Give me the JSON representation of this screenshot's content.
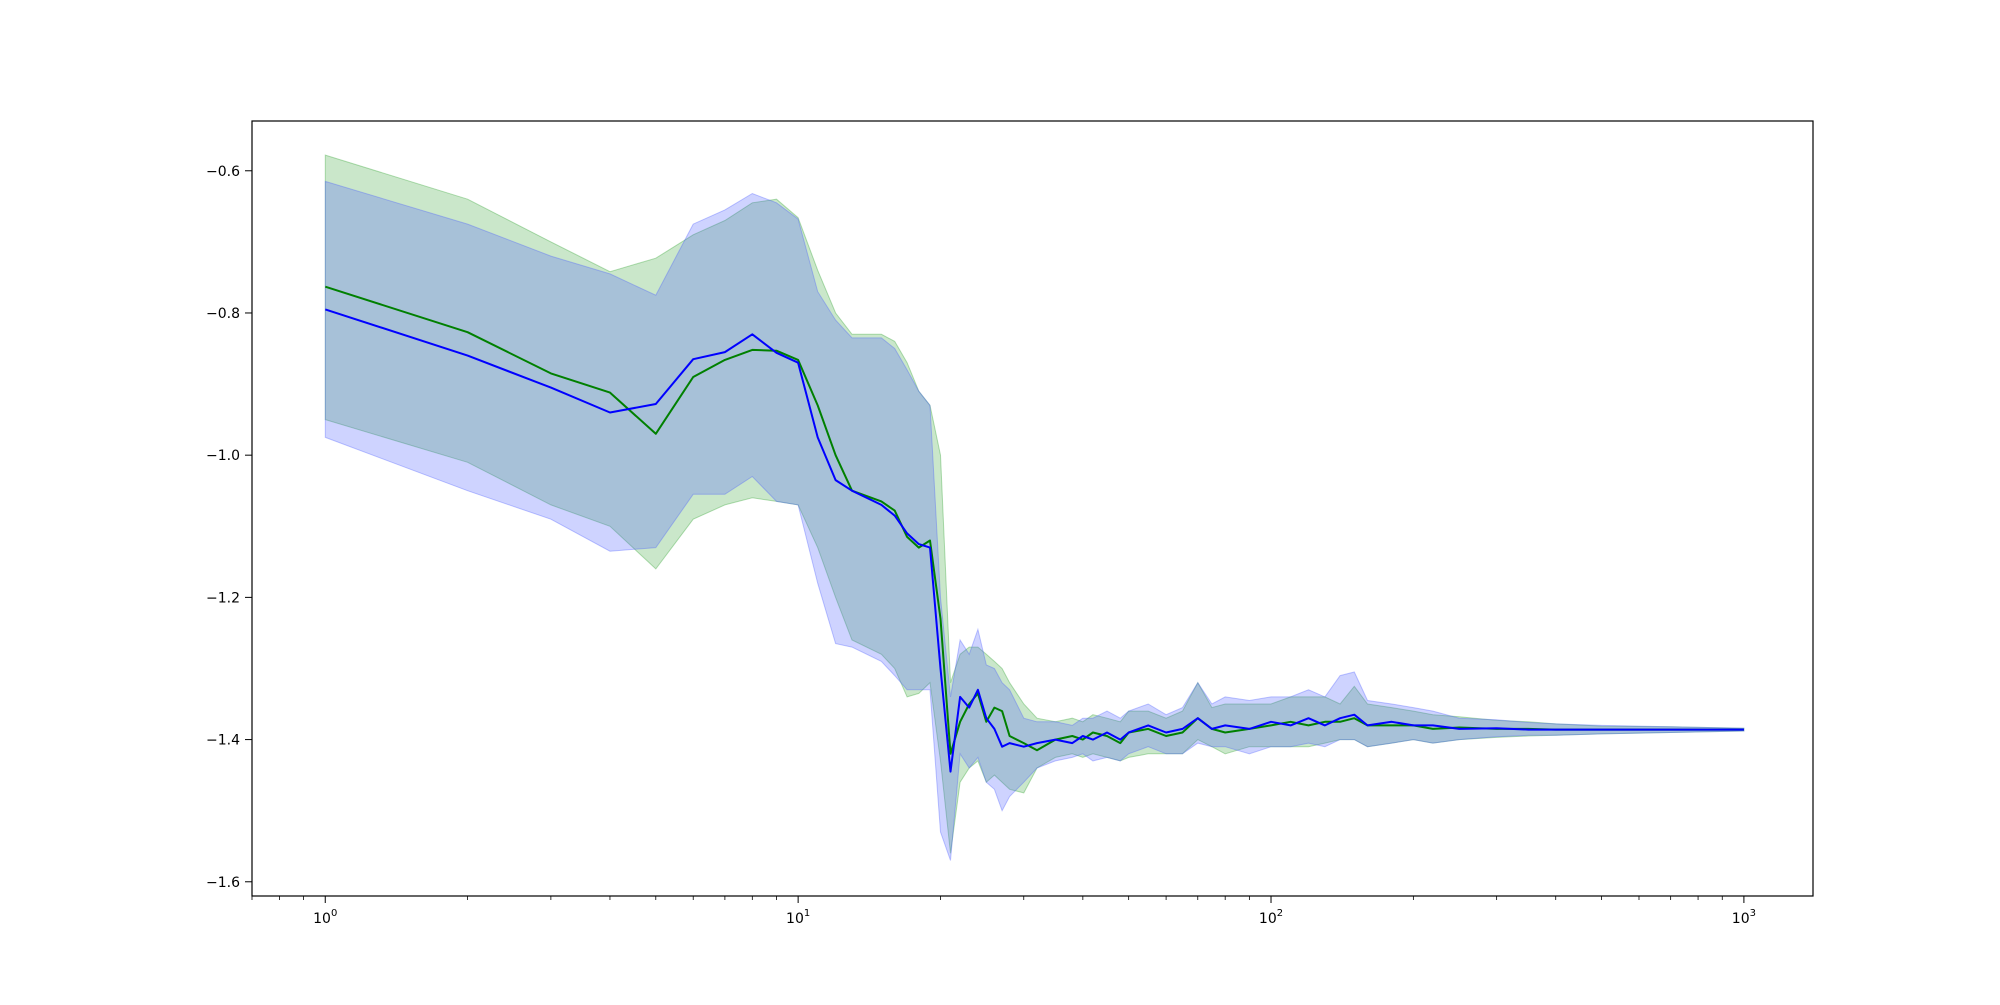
{
  "chart_data": {
    "type": "line",
    "title": "",
    "xlabel": "",
    "ylabel": "",
    "xscale": "log",
    "xlim": [
      0.7,
      1400
    ],
    "ylim": [
      -1.62,
      -0.53
    ],
    "grid": false,
    "x_ticks": [
      {
        "value": 1,
        "base": "10",
        "exp": "0"
      },
      {
        "value": 10,
        "base": "10",
        "exp": "1"
      },
      {
        "value": 100,
        "base": "10",
        "exp": "2"
      },
      {
        "value": 1000,
        "base": "10",
        "exp": "3"
      }
    ],
    "y_ticks": [
      {
        "value": -0.6,
        "label": "−0.6"
      },
      {
        "value": -0.8,
        "label": "−0.8"
      },
      {
        "value": -1.0,
        "label": "−1.0"
      },
      {
        "value": -1.2,
        "label": "−1.2"
      },
      {
        "value": -1.4,
        "label": "−1.4"
      },
      {
        "value": -1.6,
        "label": "−1.6"
      }
    ],
    "series": [
      {
        "color": "#008000",
        "band_color": "#2ca02c",
        "band_opacity": 0.25,
        "points": [
          [
            1,
            -0.763,
            -0.578,
            -0.95
          ],
          [
            2,
            -0.827,
            -0.64,
            -1.01
          ],
          [
            3,
            -0.885,
            -0.7,
            -1.07
          ],
          [
            4,
            -0.912,
            -0.742,
            -1.1
          ],
          [
            5,
            -0.97,
            -0.723,
            -1.16
          ],
          [
            6,
            -0.89,
            -0.69,
            -1.09
          ],
          [
            7,
            -0.866,
            -0.67,
            -1.07
          ],
          [
            8,
            -0.852,
            -0.645,
            -1.06
          ],
          [
            9,
            -0.853,
            -0.64,
            -1.065
          ],
          [
            10,
            -0.866,
            -0.666,
            -1.07
          ],
          [
            11,
            -0.93,
            -0.74,
            -1.13
          ],
          [
            12,
            -1.0,
            -0.8,
            -1.2
          ],
          [
            13,
            -1.05,
            -0.83,
            -1.26
          ],
          [
            15,
            -1.065,
            -0.83,
            -1.28
          ],
          [
            16,
            -1.078,
            -0.84,
            -1.3
          ],
          [
            17,
            -1.115,
            -0.87,
            -1.34
          ],
          [
            18,
            -1.13,
            -0.91,
            -1.335
          ],
          [
            19,
            -1.12,
            -0.93,
            -1.32
          ],
          [
            20,
            -1.23,
            -1.0,
            -1.43
          ],
          [
            21,
            -1.42,
            -1.32,
            -1.56
          ],
          [
            22,
            -1.375,
            -1.28,
            -1.46
          ],
          [
            23,
            -1.35,
            -1.27,
            -1.44
          ],
          [
            24,
            -1.335,
            -1.27,
            -1.43
          ],
          [
            25,
            -1.375,
            -1.28,
            -1.46
          ],
          [
            26,
            -1.355,
            -1.29,
            -1.45
          ],
          [
            27,
            -1.36,
            -1.3,
            -1.46
          ],
          [
            28,
            -1.395,
            -1.32,
            -1.47
          ],
          [
            30,
            -1.405,
            -1.35,
            -1.475
          ],
          [
            32,
            -1.415,
            -1.37,
            -1.44
          ],
          [
            35,
            -1.4,
            -1.375,
            -1.425
          ],
          [
            38,
            -1.395,
            -1.37,
            -1.42
          ],
          [
            40,
            -1.4,
            -1.375,
            -1.425
          ],
          [
            42,
            -1.39,
            -1.365,
            -1.42
          ],
          [
            45,
            -1.395,
            -1.37,
            -1.425
          ],
          [
            48,
            -1.405,
            -1.375,
            -1.43
          ],
          [
            50,
            -1.39,
            -1.36,
            -1.425
          ],
          [
            55,
            -1.385,
            -1.36,
            -1.42
          ],
          [
            60,
            -1.395,
            -1.37,
            -1.42
          ],
          [
            65,
            -1.39,
            -1.36,
            -1.42
          ],
          [
            70,
            -1.37,
            -1.32,
            -1.4
          ],
          [
            75,
            -1.385,
            -1.355,
            -1.41
          ],
          [
            80,
            -1.39,
            -1.35,
            -1.42
          ],
          [
            90,
            -1.385,
            -1.35,
            -1.41
          ],
          [
            100,
            -1.38,
            -1.35,
            -1.41
          ],
          [
            110,
            -1.375,
            -1.34,
            -1.41
          ],
          [
            120,
            -1.38,
            -1.34,
            -1.41
          ],
          [
            130,
            -1.375,
            -1.34,
            -1.405
          ],
          [
            140,
            -1.375,
            -1.35,
            -1.4
          ],
          [
            150,
            -1.37,
            -1.325,
            -1.4
          ],
          [
            160,
            -1.38,
            -1.35,
            -1.41
          ],
          [
            180,
            -1.38,
            -1.355,
            -1.405
          ],
          [
            200,
            -1.38,
            -1.36,
            -1.4
          ],
          [
            220,
            -1.385,
            -1.365,
            -1.405
          ],
          [
            250,
            -1.383,
            -1.368,
            -1.4
          ],
          [
            300,
            -1.385,
            -1.373,
            -1.397
          ],
          [
            350,
            -1.385,
            -1.375,
            -1.395
          ],
          [
            400,
            -1.386,
            -1.378,
            -1.394
          ],
          [
            500,
            -1.386,
            -1.381,
            -1.392
          ],
          [
            700,
            -1.386,
            -1.382,
            -1.39
          ],
          [
            1000,
            -1.386,
            -1.384,
            -1.388
          ]
        ]
      },
      {
        "color": "#0000ff",
        "band_color": "#4a5bff",
        "band_opacity": 0.27,
        "points": [
          [
            1,
            -0.795,
            -0.615,
            -0.975
          ],
          [
            2,
            -0.86,
            -0.675,
            -1.05
          ],
          [
            3,
            -0.905,
            -0.72,
            -1.09
          ],
          [
            4,
            -0.94,
            -0.745,
            -1.135
          ],
          [
            5,
            -0.928,
            -0.775,
            -1.13
          ],
          [
            6,
            -0.865,
            -0.675,
            -1.055
          ],
          [
            7,
            -0.855,
            -0.655,
            -1.055
          ],
          [
            8,
            -0.83,
            -0.632,
            -1.03
          ],
          [
            9,
            -0.856,
            -0.645,
            -1.065
          ],
          [
            10,
            -0.87,
            -0.668,
            -1.07
          ],
          [
            11,
            -0.975,
            -0.77,
            -1.18
          ],
          [
            12,
            -1.035,
            -0.81,
            -1.265
          ],
          [
            13,
            -1.05,
            -0.835,
            -1.27
          ],
          [
            15,
            -1.07,
            -0.835,
            -1.29
          ],
          [
            16,
            -1.085,
            -0.85,
            -1.31
          ],
          [
            17,
            -1.11,
            -0.88,
            -1.33
          ],
          [
            18,
            -1.125,
            -0.91,
            -1.33
          ],
          [
            19,
            -1.13,
            -0.93,
            -1.33
          ],
          [
            20,
            -1.3,
            -1.2,
            -1.53
          ],
          [
            21,
            -1.445,
            -1.34,
            -1.57
          ],
          [
            22,
            -1.34,
            -1.26,
            -1.42
          ],
          [
            23,
            -1.355,
            -1.28,
            -1.44
          ],
          [
            24,
            -1.33,
            -1.245,
            -1.425
          ],
          [
            25,
            -1.37,
            -1.295,
            -1.46
          ],
          [
            26,
            -1.385,
            -1.3,
            -1.47
          ],
          [
            27,
            -1.41,
            -1.32,
            -1.5
          ],
          [
            28,
            -1.405,
            -1.33,
            -1.48
          ],
          [
            30,
            -1.41,
            -1.37,
            -1.46
          ],
          [
            32,
            -1.405,
            -1.375,
            -1.44
          ],
          [
            35,
            -1.4,
            -1.375,
            -1.43
          ],
          [
            38,
            -1.405,
            -1.38,
            -1.425
          ],
          [
            40,
            -1.395,
            -1.37,
            -1.42
          ],
          [
            42,
            -1.4,
            -1.37,
            -1.43
          ],
          [
            45,
            -1.39,
            -1.36,
            -1.425
          ],
          [
            48,
            -1.4,
            -1.37,
            -1.43
          ],
          [
            50,
            -1.39,
            -1.36,
            -1.42
          ],
          [
            55,
            -1.38,
            -1.35,
            -1.41
          ],
          [
            60,
            -1.39,
            -1.365,
            -1.42
          ],
          [
            65,
            -1.385,
            -1.355,
            -1.42
          ],
          [
            70,
            -1.37,
            -1.32,
            -1.405
          ],
          [
            75,
            -1.385,
            -1.35,
            -1.41
          ],
          [
            80,
            -1.38,
            -1.34,
            -1.41
          ],
          [
            90,
            -1.385,
            -1.345,
            -1.42
          ],
          [
            100,
            -1.375,
            -1.34,
            -1.41
          ],
          [
            110,
            -1.38,
            -1.34,
            -1.41
          ],
          [
            120,
            -1.37,
            -1.33,
            -1.405
          ],
          [
            130,
            -1.38,
            -1.34,
            -1.41
          ],
          [
            140,
            -1.37,
            -1.31,
            -1.4
          ],
          [
            150,
            -1.365,
            -1.305,
            -1.4
          ],
          [
            160,
            -1.38,
            -1.345,
            -1.41
          ],
          [
            180,
            -1.375,
            -1.35,
            -1.405
          ],
          [
            200,
            -1.38,
            -1.355,
            -1.4
          ],
          [
            220,
            -1.38,
            -1.36,
            -1.405
          ],
          [
            250,
            -1.385,
            -1.37,
            -1.4
          ],
          [
            300,
            -1.384,
            -1.372,
            -1.396
          ],
          [
            350,
            -1.386,
            -1.376,
            -1.394
          ],
          [
            400,
            -1.386,
            -1.378,
            -1.394
          ],
          [
            500,
            -1.386,
            -1.38,
            -1.392
          ],
          [
            700,
            -1.386,
            -1.382,
            -1.39
          ],
          [
            1000,
            -1.386,
            -1.384,
            -1.388
          ]
        ]
      }
    ]
  }
}
